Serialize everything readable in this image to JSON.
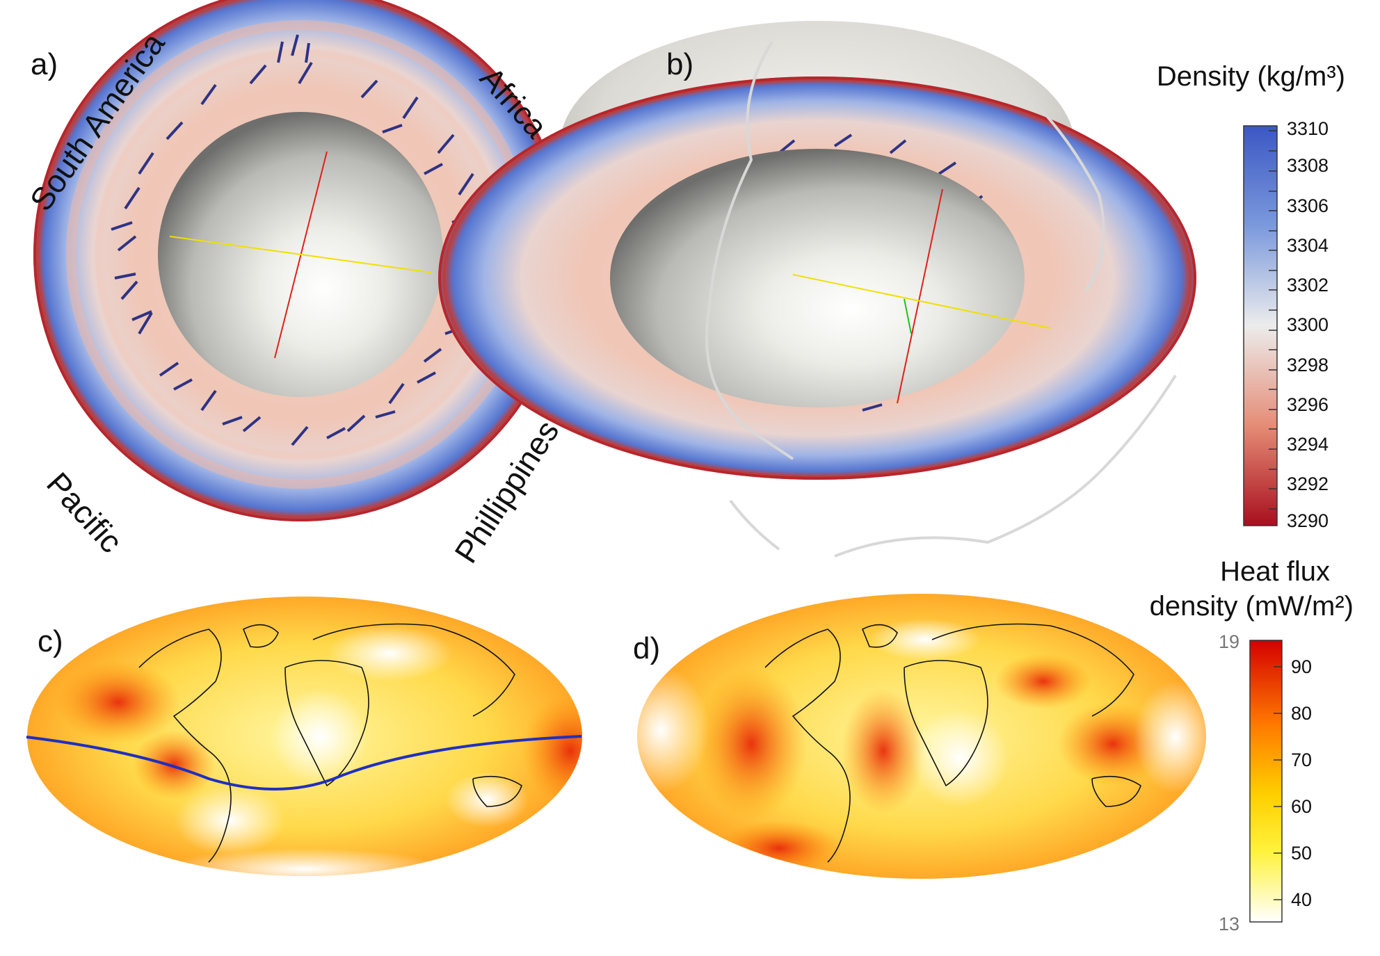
{
  "panels": {
    "a": "a)",
    "b": "b)",
    "c": "c)",
    "d": "d)"
  },
  "regions": {
    "south_america": "South America",
    "africa": "Africa",
    "pacific": "Pacific",
    "philippines": "Phillippines"
  },
  "density_bar": {
    "title": "Density (kg/m³)",
    "ticks": [
      "3310",
      "3308",
      "3306",
      "3304",
      "3302",
      "3300",
      "3298",
      "3296",
      "3294",
      "3292",
      "3290"
    ],
    "colors": {
      "high": "#3b57c4",
      "mid": "#e8e8e8",
      "low": "#b11020"
    }
  },
  "heat_bar": {
    "title_line1": "Heat flux",
    "title_line2": "density (mW/m²)",
    "ticks": [
      "90",
      "80",
      "70",
      "60",
      "50",
      "40"
    ],
    "side_top": "19",
    "side_bottom": "13",
    "colors": {
      "high": "#d40000",
      "mid": "#ffe800",
      "low": "#ffffff"
    }
  }
}
